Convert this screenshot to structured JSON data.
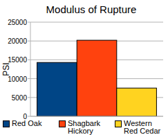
{
  "chart_data": {
    "type": "bar",
    "title": "Modulus of Rupture",
    "y_label": "PSI",
    "categories": [
      null
    ],
    "series": [
      {
        "name": "Red Oak",
        "color": "#004586",
        "values": [
          14300
        ]
      },
      {
        "name": "Shagbark Hickory",
        "color": "#ff420e",
        "values": [
          20200
        ]
      },
      {
        "name": "Western Red Cedar",
        "color": "#ffd320",
        "values": [
          7500
        ]
      }
    ],
    "ylim": [
      0,
      25000
    ],
    "yticks": [
      0,
      5000,
      10000,
      15000,
      20000,
      25000
    ],
    "grid": true,
    "legend": "bottom"
  }
}
